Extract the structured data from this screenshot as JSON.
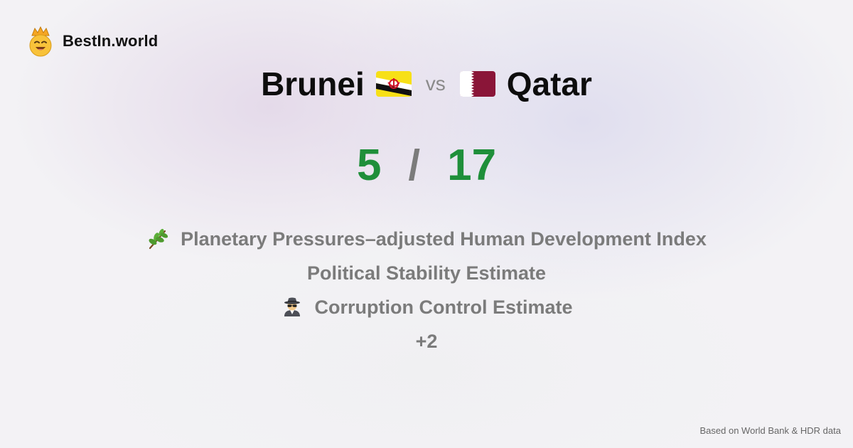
{
  "brand": {
    "name": "BestIn.world",
    "logo_icon": "crown-smiley-icon"
  },
  "comparison": {
    "left_country": "Brunei",
    "left_flag": "brunei-flag-icon",
    "vs_label": "vs",
    "right_country": "Qatar",
    "right_flag": "qatar-flag-icon"
  },
  "scores": {
    "left": "5",
    "separator": "/",
    "right": "17",
    "score_color": "#1f8f3a"
  },
  "metrics": [
    {
      "label": "Planetary Pressures–adjusted Human Development Index",
      "icon": "herb-icon"
    },
    {
      "label": "Political Stability Estimate"
    },
    {
      "label": "Corruption Control Estimate",
      "icon": "detective-icon"
    },
    {
      "label": "+2"
    }
  ],
  "footer": {
    "source_note": "Based on World Bank & HDR data"
  }
}
